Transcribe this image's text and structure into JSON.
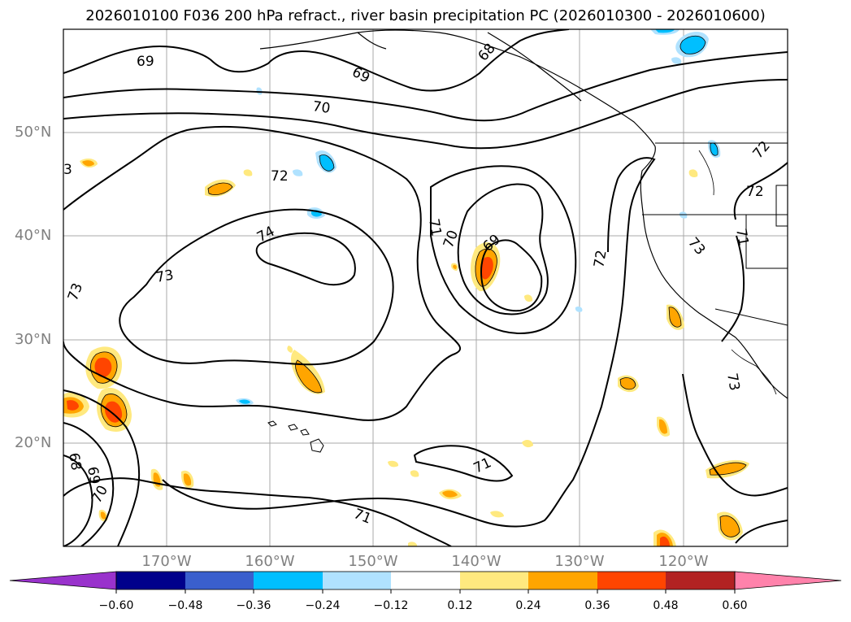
{
  "title": "2026010100 F036 200 hPa refract., river basin precipitation PC (2026010300 - 2026010600)",
  "map": {
    "lat_labels": [
      "50°N",
      "40°N",
      "30°N",
      "20°N"
    ],
    "lon_labels": [
      "170°W",
      "160°W",
      "150°W",
      "140°W",
      "130°W",
      "120°W"
    ],
    "contour_labels": [
      "69",
      "69",
      "68",
      "70",
      "72",
      "73",
      "74",
      "73",
      "72",
      "71",
      "70",
      "69",
      "72",
      "72",
      "73",
      "71",
      "73",
      "73",
      "71",
      "71",
      "68",
      "69",
      "70",
      "3"
    ]
  },
  "colorbar": {
    "ticks": [
      "−0.60",
      "−0.48",
      "−0.36",
      "−0.24",
      "−0.12",
      "0.12",
      "0.24",
      "0.36",
      "0.48",
      "0.60"
    ],
    "colors": [
      "#9932cc",
      "#00008b",
      "#3a5fcd",
      "#00bfff",
      "#b0e2ff",
      "#ffffff",
      "#ffe97f",
      "#ffa500",
      "#ff4500",
      "#b22222",
      "#ff82ab"
    ]
  }
}
